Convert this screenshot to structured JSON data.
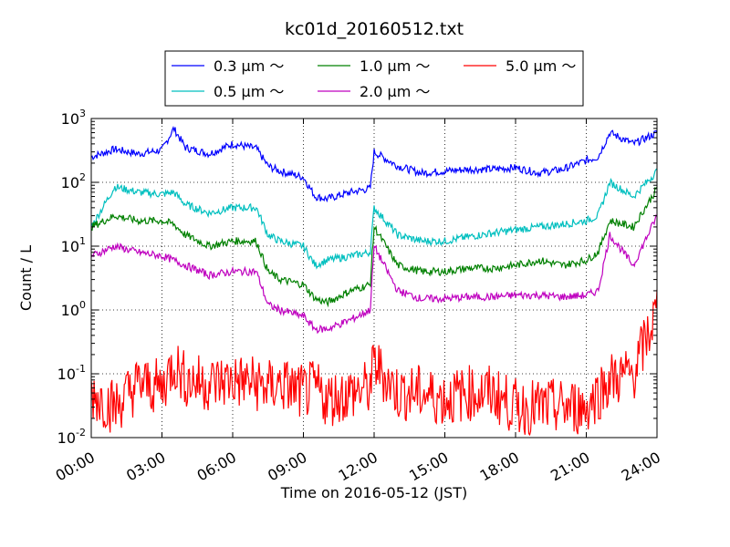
{
  "chart_data": {
    "type": "line",
    "title": "kc01d_20160512.txt",
    "xlabel": "Time on 2016-05-12 (JST)",
    "ylabel": "Count / L",
    "yscale": "log",
    "ylim": [
      0.01,
      1000
    ],
    "xlim": [
      "00:00",
      "24:00"
    ],
    "x_ticks": [
      "00:00",
      "03:00",
      "06:00",
      "09:00",
      "12:00",
      "15:00",
      "18:00",
      "21:00",
      "24:00"
    ],
    "y_ticks": [
      {
        "base": "10",
        "exp": "-2",
        "value": 0.01
      },
      {
        "base": "10",
        "exp": "-1",
        "value": 0.1
      },
      {
        "base": "10",
        "exp": "0",
        "value": 1
      },
      {
        "base": "10",
        "exp": "1",
        "value": 10
      },
      {
        "base": "10",
        "exp": "2",
        "value": 100
      },
      {
        "base": "10",
        "exp": "3",
        "value": 1000
      }
    ],
    "grid": true,
    "legend_position": "top-center",
    "x": [
      "00:00",
      "01:00",
      "02:00",
      "03:00",
      "03:30",
      "04:00",
      "05:00",
      "06:00",
      "07:00",
      "07:30",
      "08:00",
      "09:00",
      "09:30",
      "10:00",
      "11:00",
      "11:50",
      "12:00",
      "13:00",
      "14:00",
      "15:00",
      "16:00",
      "17:00",
      "18:00",
      "19:00",
      "20:00",
      "21:00",
      "21:30",
      "22:00",
      "23:00",
      "24:00"
    ],
    "series": [
      {
        "name": "0.3 μm ～",
        "color": "#0000ff",
        "values": [
          250,
          330,
          280,
          320,
          700,
          350,
          280,
          400,
          340,
          180,
          150,
          120,
          60,
          55,
          70,
          80,
          300,
          180,
          140,
          150,
          160,
          160,
          170,
          140,
          160,
          220,
          250,
          600,
          400,
          600
        ]
      },
      {
        "name": "0.5 μm ～",
        "color": "#00bfbf",
        "values": [
          20,
          85,
          70,
          65,
          70,
          45,
          33,
          40,
          40,
          15,
          12,
          10,
          5,
          6,
          7,
          8,
          40,
          15,
          12,
          12,
          14,
          16,
          18,
          20,
          22,
          25,
          30,
          100,
          60,
          150
        ]
      },
      {
        "name": "1.0 μm ～",
        "color": "#008000",
        "values": [
          20,
          30,
          25,
          25,
          22,
          15,
          10,
          12,
          12,
          4,
          3,
          2.5,
          1.5,
          1.3,
          2,
          2.5,
          20,
          5,
          4,
          4,
          4.5,
          4.5,
          5,
          6,
          5,
          6,
          8,
          25,
          20,
          80
        ]
      },
      {
        "name": "2.0 μm ～",
        "color": "#bf00bf",
        "values": [
          7,
          10,
          8,
          7,
          6,
          5,
          3.5,
          4,
          4,
          1.2,
          1.0,
          0.8,
          0.5,
          0.5,
          0.7,
          1.0,
          10,
          2,
          1.5,
          1.5,
          1.6,
          1.6,
          1.7,
          1.7,
          1.6,
          1.7,
          2.0,
          15,
          5,
          30
        ]
      },
      {
        "name": "5.0 μm ～",
        "color": "#ff0000",
        "values": [
          0.05,
          0.03,
          0.07,
          0.06,
          0.15,
          0.08,
          0.07,
          0.08,
          0.07,
          0.06,
          0.07,
          0.05,
          0.06,
          0.04,
          0.05,
          0.06,
          0.15,
          0.05,
          0.05,
          0.04,
          0.05,
          0.05,
          0.03,
          0.03,
          0.03,
          0.03,
          0.05,
          0.08,
          0.1,
          1.0
        ]
      }
    ]
  }
}
